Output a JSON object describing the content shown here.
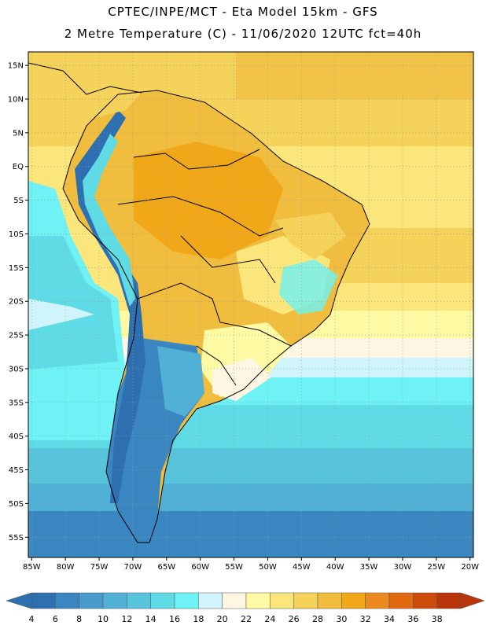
{
  "header": {
    "line1": "CPTEC/INPE/MCT -  Eta Model 15km - GFS",
    "line2": "2 Metre Temperature (C) - 11/06/2020 12UTC fct=40h"
  },
  "map": {
    "lat_labels": [
      "15N",
      "10N",
      "5N",
      "EQ",
      "5S",
      "10S",
      "15S",
      "20S",
      "25S",
      "30S",
      "35S",
      "40S",
      "45S",
      "50S",
      "55S"
    ],
    "lon_labels": [
      "85W",
      "80W",
      "75W",
      "70W",
      "65W",
      "60W",
      "55W",
      "50W",
      "45W",
      "40W",
      "35W",
      "30W",
      "25W",
      "20W"
    ],
    "lat_range": [
      17,
      -58
    ],
    "lon_range": [
      -85.5,
      -19.5
    ],
    "gridlines": true
  },
  "colorbar": {
    "levels": [
      "4",
      "6",
      "8",
      "10",
      "12",
      "14",
      "16",
      "18",
      "20",
      "22",
      "24",
      "26",
      "28",
      "30",
      "32",
      "34",
      "36",
      "38"
    ],
    "colors": [
      "#2e6fb0",
      "#3a86c0",
      "#4a9bcc",
      "#51b0d6",
      "#58c4dc",
      "#5fdbe6",
      "#6ef2f5",
      "#cff4fb",
      "#fdf6e3",
      "#fef9a3",
      "#fae67a",
      "#f5d25a",
      "#f0bd3e",
      "#f0a818",
      "#ec8a20",
      "#e06a10",
      "#cc4a0a",
      "#b8360a"
    ]
  }
}
